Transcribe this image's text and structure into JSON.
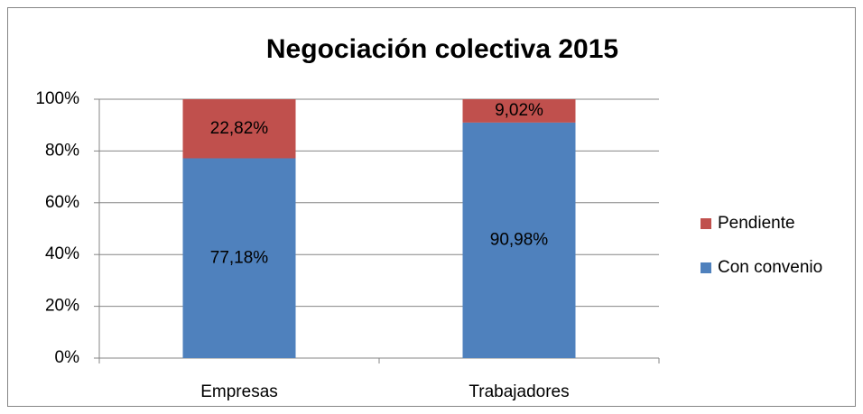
{
  "chart_data": {
    "type": "stacked_bar",
    "title": "Negociación colectiva 2015",
    "categories": [
      "Empresas",
      "Trabajadores"
    ],
    "series": [
      {
        "name": "Con convenio",
        "color": "#4f81bd",
        "values": [
          77.18,
          90.98
        ],
        "value_labels": [
          "77,18%",
          "90,98%"
        ]
      },
      {
        "name": "Pendiente",
        "color": "#c0504d",
        "values": [
          22.82,
          9.02
        ],
        "value_labels": [
          "22,82%",
          "9,02%"
        ]
      }
    ],
    "ylim": [
      0,
      100
    ],
    "yticks": [
      {
        "value": 0,
        "label": "0%"
      },
      {
        "value": 20,
        "label": "20%"
      },
      {
        "value": 40,
        "label": "40%"
      },
      {
        "value": 60,
        "label": "60%"
      },
      {
        "value": 80,
        "label": "80%"
      },
      {
        "value": 100,
        "label": "100%"
      }
    ],
    "grid": true,
    "legend": "right"
  }
}
